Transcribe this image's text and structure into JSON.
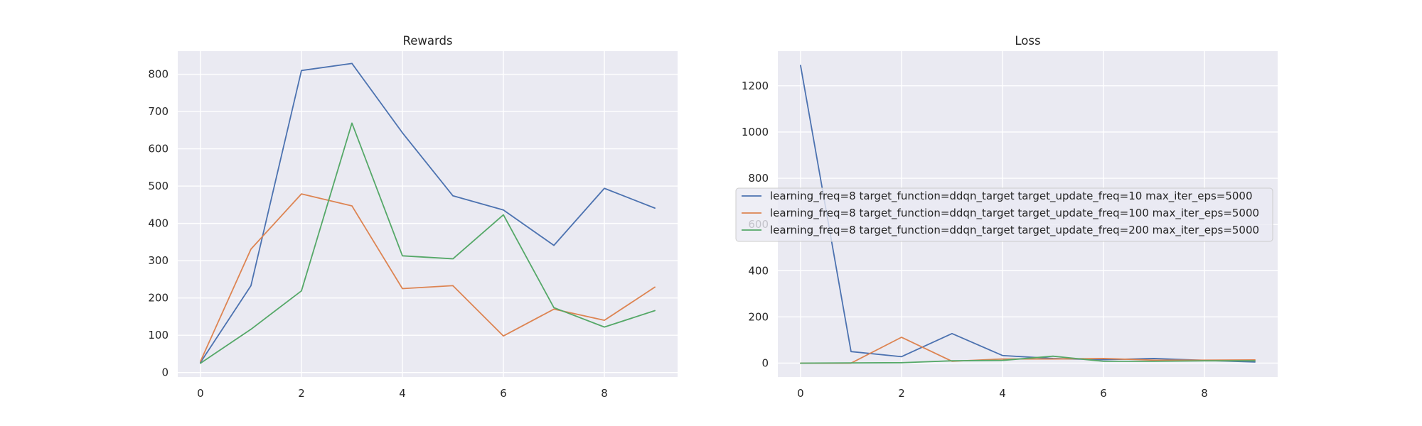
{
  "chart_data": [
    {
      "type": "line",
      "title": "Rewards",
      "xlabel": "",
      "ylabel": "",
      "xlim": [
        -0.45,
        9.45
      ],
      "ylim": [
        -12,
        862
      ],
      "xticks": [
        0,
        2,
        4,
        6,
        8
      ],
      "yticks": [
        0,
        100,
        200,
        300,
        400,
        500,
        600,
        700,
        800
      ],
      "grid": true,
      "x": [
        0,
        1,
        2,
        3,
        4,
        5,
        6,
        7,
        8,
        9
      ],
      "series": [
        {
          "color": "#4c72b0",
          "values": [
            27,
            233,
            810,
            829,
            643,
            474,
            436,
            341,
            494,
            441
          ]
        },
        {
          "color": "#dd8452",
          "values": [
            30,
            331,
            479,
            447,
            225,
            233,
            98,
            170,
            140,
            229
          ]
        },
        {
          "color": "#55a868",
          "values": [
            25,
            116,
            219,
            669,
            313,
            305,
            423,
            174,
            122,
            166
          ]
        }
      ]
    },
    {
      "type": "line",
      "title": "Loss",
      "xlabel": "",
      "ylabel": "",
      "xlim": [
        -0.45,
        9.45
      ],
      "ylim": [
        -60,
        1350
      ],
      "xticks": [
        0,
        2,
        4,
        6,
        8
      ],
      "yticks": [
        0,
        200,
        400,
        600,
        800,
        1000,
        1200
      ],
      "grid": true,
      "legend_placement": "center",
      "x": [
        0,
        1,
        2,
        3,
        4,
        5,
        6,
        7,
        8,
        9
      ],
      "series": [
        {
          "name": "learning_freq=8 target_function=ddqn_target target_update_freq=10 max_iter_eps=5000",
          "color": "#4c72b0",
          "values": [
            1288,
            50,
            28,
            128,
            33,
            20,
            15,
            20,
            12,
            5
          ]
        },
        {
          "name": "learning_freq=8 target_function=ddqn_target target_update_freq=100 max_iter_eps=5000",
          "color": "#dd8452",
          "values": [
            0,
            0,
            112,
            8,
            18,
            18,
            20,
            13,
            13,
            14
          ]
        },
        {
          "name": "learning_freq=8 target_function=ddqn_target target_update_freq=200 max_iter_eps=5000",
          "color": "#55a868",
          "values": [
            0,
            1,
            2,
            10,
            12,
            30,
            8,
            8,
            10,
            10
          ]
        }
      ]
    }
  ]
}
